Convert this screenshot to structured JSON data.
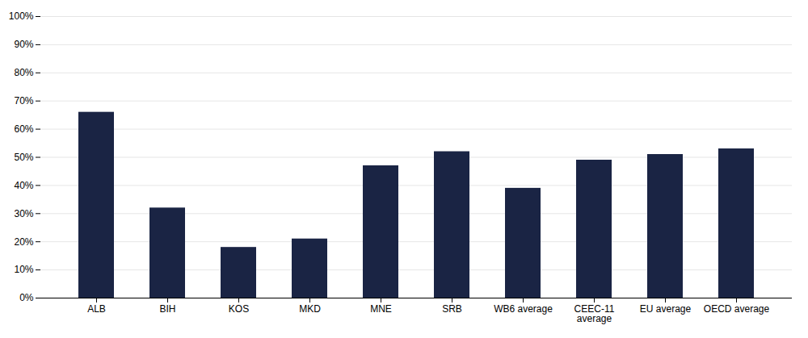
{
  "chart_data": {
    "type": "bar",
    "categories": [
      "ALB",
      "BIH",
      "KOS",
      "MKD",
      "MNE",
      "SRB",
      "WB6 average",
      "CEEC-11\naverage",
      "EU average",
      "OECD average"
    ],
    "values": [
      0.66,
      0.32,
      0.18,
      0.21,
      0.47,
      0.52,
      0.39,
      0.49,
      0.51,
      0.53
    ],
    "color": "#1a2444",
    "ylim": [
      0,
      1.0
    ],
    "yticks": [
      {
        "value": 0.0,
        "label": "0%"
      },
      {
        "value": 0.1,
        "label": "10%"
      },
      {
        "value": 0.2,
        "label": "20%"
      },
      {
        "value": 0.3,
        "label": "30%"
      },
      {
        "value": 0.4,
        "label": "40%"
      },
      {
        "value": 0.5,
        "label": "50%"
      },
      {
        "value": 0.6,
        "label": "60%"
      },
      {
        "value": 0.7,
        "label": "70%"
      },
      {
        "value": 0.8,
        "label": "80%"
      },
      {
        "value": 0.9,
        "label": "90%"
      },
      {
        "value": 1.0,
        "label": "100%"
      }
    ],
    "grid": true
  }
}
